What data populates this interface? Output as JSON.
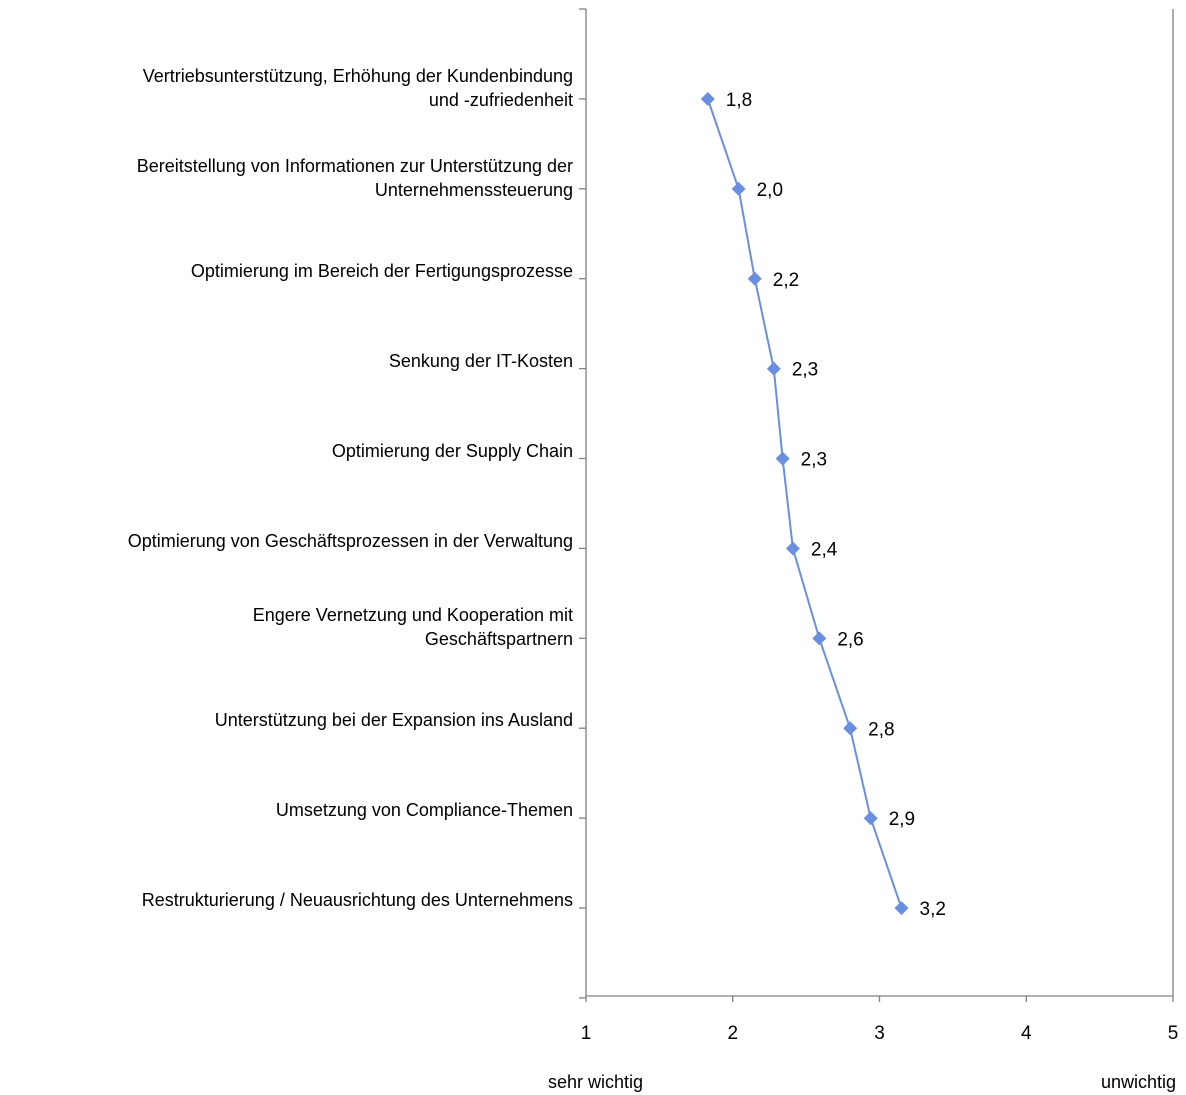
{
  "chart_data": {
    "type": "line",
    "orientation": "horizontal",
    "categories": [
      "Vertriebsunterstützung, Erhöhung der Kundenbindung und -zufriedenheit",
      "Bereitstellung von Informationen zur Unterstützung der Unternehmenssteuerung",
      "Optimierung im Bereich der Fertigungsprozesse",
      "Senkung der IT-Kosten",
      "Optimierung der Supply Chain",
      "Optimierung von Geschäftsprozessen in der Verwaltung",
      "Engere Vernetzung und Kooperation mit Geschäftspartnern",
      "Unterstützung bei der Expansion ins Ausland",
      "Umsetzung von Compliance-Themen",
      "Restrukturierung / Neuausrichtung des Unternehmens"
    ],
    "category_lines": [
      [
        "Vertriebsunterstützung, Erhöhung der Kundenbindung",
        "und -zufriedenheit"
      ],
      [
        "Bereitstellung von Informationen zur Unterstützung der",
        "Unternehmenssteuerung"
      ],
      [
        "Optimierung im Bereich der Fertigungsprozesse"
      ],
      [
        "Senkung der IT-Kosten"
      ],
      [
        "Optimierung der Supply Chain"
      ],
      [
        "Optimierung von Geschäftsprozessen in der Verwaltung"
      ],
      [
        "Engere Vernetzung und Kooperation mit",
        "Geschäftspartnern"
      ],
      [
        "Unterstützung bei der Expansion ins Ausland"
      ],
      [
        "Umsetzung von Compliance-Themen"
      ],
      [
        "Restrukturierung / Neuausrichtung des Unternehmens"
      ]
    ],
    "values": [
      1.83,
      2.04,
      2.15,
      2.28,
      2.34,
      2.41,
      2.59,
      2.8,
      2.94,
      3.15
    ],
    "data_labels": [
      "1,8",
      "2,0",
      "2,2",
      "2,3",
      "2,3",
      "2,4",
      "2,6",
      "2,8",
      "2,9",
      "3,2"
    ],
    "xlim": [
      1,
      5
    ],
    "x_ticks": [
      1,
      2,
      3,
      4,
      5
    ],
    "x_tick_labels": [
      "1",
      "2",
      "3",
      "4",
      "5"
    ],
    "x_min_label": "sehr wichtig",
    "x_max_label": "unwichtig",
    "marker": "diamond",
    "line_color": "#6B8FE0",
    "marker_color": "#6B8FE0",
    "legend": "none",
    "grid": false
  }
}
